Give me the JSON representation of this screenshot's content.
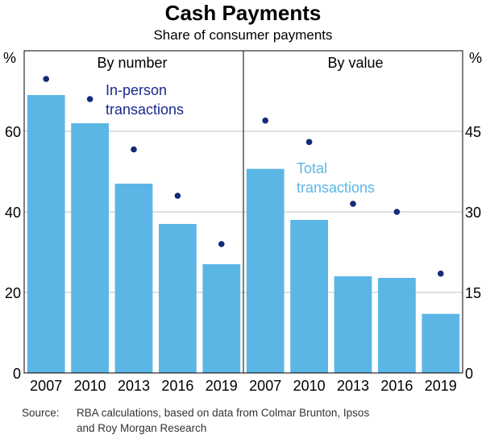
{
  "title": "Cash Payments",
  "subtitle": "Share of consumer payments",
  "source_label": "Source:",
  "source_line1": "RBA calculations, based on data from Colmar Brunton, Ipsos",
  "source_line2": "and Roy Morgan Research",
  "colors": {
    "bar": "#5bb6e6",
    "dot": "#152a7a",
    "grid": "#c0c0c0",
    "annotation_dark": "#1a2a8a",
    "annotation_light": "#5bb6e6"
  },
  "chart_data": [
    {
      "type": "bar",
      "panel_title": "By number",
      "unit_label": "%",
      "categories": [
        "2007",
        "2010",
        "2013",
        "2016",
        "2019"
      ],
      "ylim": [
        0,
        80
      ],
      "yticks": [
        0,
        20,
        40,
        60
      ],
      "grid": true,
      "series": [
        {
          "name": "Total transactions",
          "kind": "bar",
          "values": [
            69,
            62,
            47,
            37,
            27
          ]
        },
        {
          "name": "In-person transactions",
          "kind": "dot",
          "values": [
            73,
            68,
            55.5,
            44,
            32
          ]
        }
      ],
      "annotation": "In-person\ntransactions"
    },
    {
      "type": "bar",
      "panel_title": "By value",
      "unit_label": "%",
      "categories": [
        "2007",
        "2010",
        "2013",
        "2016",
        "2019"
      ],
      "ylim": [
        0,
        60
      ],
      "yticks": [
        0,
        15,
        30,
        45
      ],
      "grid": true,
      "series": [
        {
          "name": "Total transactions",
          "kind": "bar",
          "values": [
            38,
            28.5,
            18,
            17.7,
            11
          ]
        },
        {
          "name": "In-person transactions",
          "kind": "dot",
          "values": [
            47,
            43,
            31.5,
            30,
            18.5
          ]
        }
      ],
      "annotation": "Total\ntransactions"
    }
  ]
}
